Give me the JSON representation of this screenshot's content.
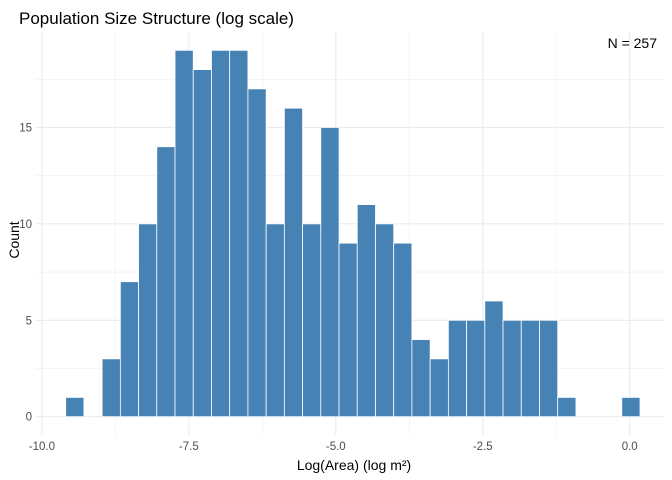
{
  "chart_data": {
    "type": "bar",
    "title": "Population Size Structure (log scale)",
    "xlabel": "Log(Area) (log m²)",
    "ylabel": "Count",
    "annotation": "N = 257",
    "annotation_position": "top-right",
    "grid": true,
    "legend": "none",
    "bar_color": "#4682B4",
    "bar_edge_color": "#ffffff",
    "grid_color": "#ebebeb",
    "xlim": [
      -10.1,
      0.6
    ],
    "ylim": [
      -0.95,
      19.95
    ],
    "x_ticks": [
      -10.0,
      -7.5,
      -5.0,
      -2.5,
      0.0
    ],
    "x_tick_labels": [
      "-10.0",
      "-7.5",
      "-5.0",
      "-2.5",
      "0.0"
    ],
    "y_ticks": [
      0,
      5,
      10,
      15
    ],
    "y_tick_labels": [
      "0",
      "5",
      "10",
      "15"
    ],
    "bin_width": 0.31,
    "bins": [
      {
        "x": -9.44,
        "count": 1
      },
      {
        "x": -8.82,
        "count": 3
      },
      {
        "x": -8.51,
        "count": 7
      },
      {
        "x": -8.2,
        "count": 10
      },
      {
        "x": -7.89,
        "count": 14
      },
      {
        "x": -7.58,
        "count": 19
      },
      {
        "x": -7.27,
        "count": 18
      },
      {
        "x": -6.96,
        "count": 19
      },
      {
        "x": -6.65,
        "count": 19
      },
      {
        "x": -6.34,
        "count": 17
      },
      {
        "x": -6.03,
        "count": 10
      },
      {
        "x": -5.72,
        "count": 16
      },
      {
        "x": -5.41,
        "count": 10
      },
      {
        "x": -5.1,
        "count": 15
      },
      {
        "x": -4.79,
        "count": 9
      },
      {
        "x": -4.48,
        "count": 11
      },
      {
        "x": -4.17,
        "count": 10
      },
      {
        "x": -3.86,
        "count": 9
      },
      {
        "x": -3.55,
        "count": 4
      },
      {
        "x": -3.24,
        "count": 3
      },
      {
        "x": -2.93,
        "count": 5
      },
      {
        "x": -2.62,
        "count": 5
      },
      {
        "x": -2.31,
        "count": 6
      },
      {
        "x": -2.0,
        "count": 5
      },
      {
        "x": -1.69,
        "count": 5
      },
      {
        "x": -1.38,
        "count": 5
      },
      {
        "x": -1.07,
        "count": 1
      },
      {
        "x": 0.02,
        "count": 1
      }
    ]
  }
}
